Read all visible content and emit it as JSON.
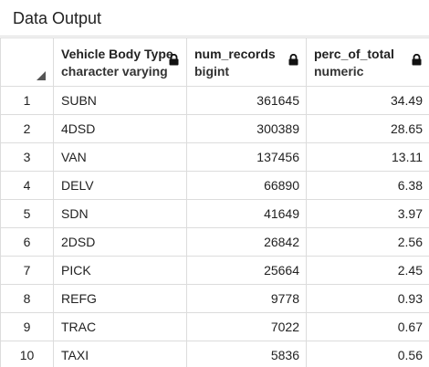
{
  "panel": {
    "title": "Data Output"
  },
  "columns": [
    {
      "name": "Vehicle Body Type",
      "type": "character varying",
      "icon": "lock-icon"
    },
    {
      "name": "num_records",
      "type": "bigint",
      "icon": "lock-icon"
    },
    {
      "name": "perc_of_total",
      "type": "numeric",
      "icon": "lock-icon"
    }
  ],
  "rows": [
    {
      "index": "1",
      "body_type": "SUBN",
      "num_records": "361645",
      "perc": "34.49"
    },
    {
      "index": "2",
      "body_type": "4DSD",
      "num_records": "300389",
      "perc": "28.65"
    },
    {
      "index": "3",
      "body_type": "VAN",
      "num_records": "137456",
      "perc": "13.11"
    },
    {
      "index": "4",
      "body_type": "DELV",
      "num_records": "66890",
      "perc": "6.38"
    },
    {
      "index": "5",
      "body_type": "SDN",
      "num_records": "41649",
      "perc": "3.97"
    },
    {
      "index": "6",
      "body_type": "2DSD",
      "num_records": "26842",
      "perc": "2.56"
    },
    {
      "index": "7",
      "body_type": "PICK",
      "num_records": "25664",
      "perc": "2.45"
    },
    {
      "index": "8",
      "body_type": "REFG",
      "num_records": "9778",
      "perc": "0.93"
    },
    {
      "index": "9",
      "body_type": "TRAC",
      "num_records": "7022",
      "perc": "0.67"
    },
    {
      "index": "10",
      "body_type": "TAXI",
      "num_records": "5836",
      "perc": "0.56"
    }
  ]
}
